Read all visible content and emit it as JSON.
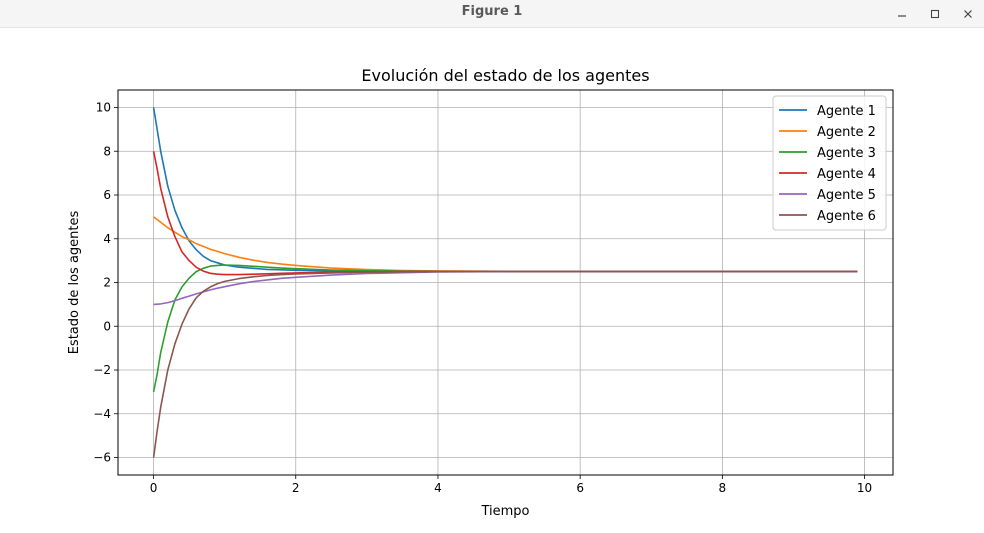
{
  "window": {
    "title": "Figure 1",
    "controls": {
      "minimize": "minimize-icon",
      "maximize": "maximize-icon",
      "close": "close-icon"
    }
  },
  "chart_data": {
    "type": "line",
    "title": "Evolución del estado de los agentes",
    "xlabel": "Tiempo",
    "ylabel": "Estado de los agentes",
    "xlim": [
      -0.5,
      10.4
    ],
    "ylim": [
      -6.8,
      10.8
    ],
    "xticks": [
      0,
      2,
      4,
      6,
      8,
      10
    ],
    "yticks": [
      -6,
      -4,
      -2,
      0,
      2,
      4,
      6,
      8,
      10
    ],
    "grid": true,
    "legend_position": "top-right",
    "series": [
      {
        "name": "Agente 1",
        "color": "#1f77b4",
        "x": [
          0,
          0.1,
          0.2,
          0.3,
          0.4,
          0.5,
          0.6,
          0.7,
          0.8,
          0.9,
          1.0,
          1.2,
          1.4,
          1.6,
          1.8,
          2.0,
          2.5,
          3.0,
          3.5,
          4.0,
          5.0,
          6.0,
          7.0,
          8.0,
          9.0,
          9.9
        ],
        "y": [
          10,
          8.0,
          6.4,
          5.3,
          4.5,
          3.9,
          3.5,
          3.2,
          3.0,
          2.9,
          2.8,
          2.7,
          2.65,
          2.6,
          2.58,
          2.56,
          2.53,
          2.52,
          2.51,
          2.5,
          2.5,
          2.5,
          2.5,
          2.5,
          2.5,
          2.5
        ]
      },
      {
        "name": "Agente 2",
        "color": "#ff7f0e",
        "x": [
          0,
          0.1,
          0.2,
          0.3,
          0.4,
          0.5,
          0.6,
          0.7,
          0.8,
          0.9,
          1.0,
          1.2,
          1.4,
          1.6,
          1.8,
          2.0,
          2.5,
          3.0,
          3.5,
          4.0,
          5.0,
          6.0,
          7.0,
          8.0,
          9.0,
          9.9
        ],
        "y": [
          5,
          4.75,
          4.5,
          4.3,
          4.1,
          3.95,
          3.78,
          3.65,
          3.52,
          3.42,
          3.32,
          3.15,
          3.02,
          2.92,
          2.84,
          2.78,
          2.66,
          2.59,
          2.55,
          2.53,
          2.51,
          2.5,
          2.5,
          2.5,
          2.5,
          2.5
        ]
      },
      {
        "name": "Agente 3",
        "color": "#2ca02c",
        "x": [
          0,
          0.05,
          0.1,
          0.2,
          0.3,
          0.4,
          0.5,
          0.6,
          0.7,
          0.8,
          0.9,
          1.0,
          1.2,
          1.4,
          1.6,
          1.8,
          2.0,
          2.5,
          3.0,
          3.5,
          4.0,
          5.0,
          6.0,
          7.0,
          8.0,
          9.0,
          9.9
        ],
        "y": [
          -3,
          -2.2,
          -1.2,
          0.2,
          1.2,
          1.8,
          2.2,
          2.5,
          2.65,
          2.75,
          2.78,
          2.8,
          2.78,
          2.74,
          2.7,
          2.66,
          2.63,
          2.57,
          2.54,
          2.52,
          2.51,
          2.5,
          2.5,
          2.5,
          2.5,
          2.5,
          2.5
        ]
      },
      {
        "name": "Agente 4",
        "color": "#d62728",
        "x": [
          0,
          0.05,
          0.1,
          0.2,
          0.3,
          0.4,
          0.5,
          0.6,
          0.7,
          0.8,
          0.9,
          1.0,
          1.2,
          1.4,
          1.6,
          1.8,
          2.0,
          2.5,
          3.0,
          3.5,
          4.0,
          5.0,
          6.0,
          7.0,
          8.0,
          9.0,
          9.9
        ],
        "y": [
          8,
          7.2,
          6.3,
          5.0,
          4.1,
          3.4,
          3.0,
          2.7,
          2.52,
          2.42,
          2.38,
          2.36,
          2.36,
          2.38,
          2.4,
          2.42,
          2.44,
          2.47,
          2.49,
          2.5,
          2.5,
          2.5,
          2.5,
          2.5,
          2.5,
          2.5,
          2.5
        ]
      },
      {
        "name": "Agente 5",
        "color": "#9467bd",
        "x": [
          0,
          0.1,
          0.2,
          0.3,
          0.4,
          0.5,
          0.6,
          0.7,
          0.8,
          0.9,
          1.0,
          1.2,
          1.4,
          1.6,
          1.8,
          2.0,
          2.5,
          3.0,
          3.5,
          4.0,
          5.0,
          6.0,
          7.0,
          8.0,
          9.0,
          9.9
        ],
        "y": [
          1,
          1.02,
          1.08,
          1.17,
          1.28,
          1.38,
          1.48,
          1.57,
          1.66,
          1.74,
          1.81,
          1.94,
          2.04,
          2.12,
          2.19,
          2.24,
          2.34,
          2.41,
          2.45,
          2.48,
          2.5,
          2.5,
          2.5,
          2.5,
          2.5,
          2.5
        ]
      },
      {
        "name": "Agente 6",
        "color": "#8c564b",
        "x": [
          0,
          0.05,
          0.1,
          0.2,
          0.3,
          0.4,
          0.5,
          0.6,
          0.7,
          0.8,
          0.9,
          1.0,
          1.2,
          1.4,
          1.6,
          1.8,
          2.0,
          2.5,
          3.0,
          3.5,
          4.0,
          5.0,
          6.0,
          7.0,
          8.0,
          9.0,
          9.9
        ],
        "y": [
          -6,
          -4.8,
          -3.7,
          -2.0,
          -0.8,
          0.1,
          0.8,
          1.3,
          1.6,
          1.8,
          1.95,
          2.05,
          2.18,
          2.26,
          2.32,
          2.36,
          2.39,
          2.44,
          2.47,
          2.49,
          2.5,
          2.5,
          2.5,
          2.5,
          2.5,
          2.5,
          2.5
        ]
      }
    ]
  }
}
